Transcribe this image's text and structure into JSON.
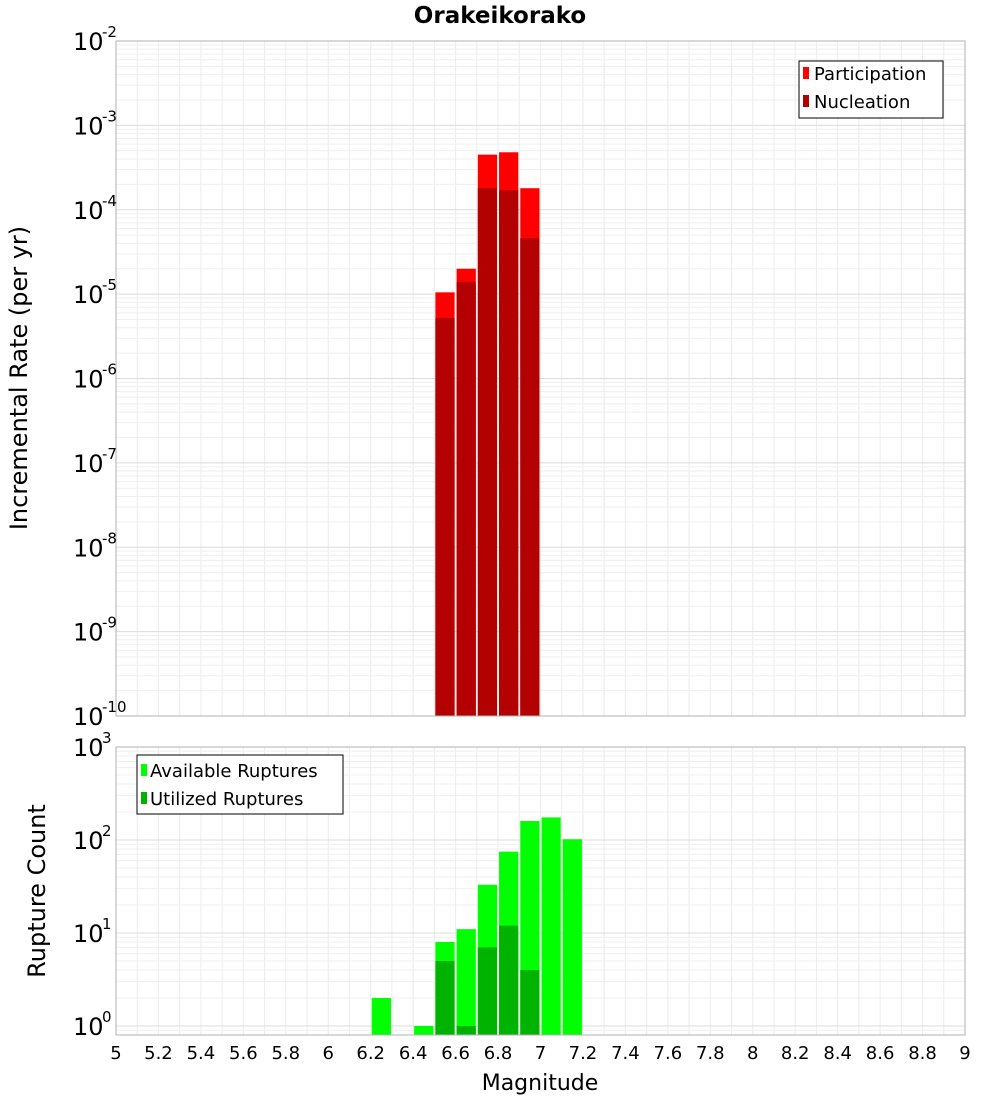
{
  "chart_data": [
    {
      "type": "bar",
      "title": "Orakeikorako",
      "xlabel": "",
      "ylabel": "Incremental Rate (per yr)",
      "yscale": "log",
      "ylim_exponents": [
        -10,
        -2
      ],
      "xlim": [
        5,
        9
      ],
      "bar_width": 0.1,
      "grid": true,
      "legend_position": "top-right",
      "series": [
        {
          "name": "Participation",
          "color": "#ff0000",
          "x": [
            6.55,
            6.65,
            6.75,
            6.85,
            6.95
          ],
          "values": [
            1.05e-05,
            2e-05,
            0.00045,
            0.00048,
            0.00018
          ]
        },
        {
          "name": "Nucleation",
          "color": "#b30000",
          "x": [
            6.55,
            6.65,
            6.75,
            6.85,
            6.95
          ],
          "values": [
            5.2e-06,
            1.4e-05,
            0.00018,
            0.00017,
            4.6e-05
          ]
        }
      ]
    },
    {
      "type": "bar",
      "title": "",
      "xlabel": "Magnitude",
      "ylabel": "Rupture Count",
      "yscale": "log",
      "ylim_exponents": [
        0,
        3
      ],
      "ylim": [
        0.8,
        1000
      ],
      "xlim": [
        5,
        9
      ],
      "bar_width": 0.1,
      "grid": true,
      "legend_position": "top-left",
      "series": [
        {
          "name": "Available Ruptures",
          "color": "#00ff00",
          "x": [
            6.25,
            6.45,
            6.55,
            6.65,
            6.75,
            6.85,
            6.95,
            7.05,
            7.15
          ],
          "values": [
            2,
            1,
            8,
            11,
            33,
            75,
            160,
            175,
            102
          ]
        },
        {
          "name": "Utilized Ruptures",
          "color": "#00b300",
          "x": [
            6.55,
            6.65,
            6.75,
            6.85,
            6.95
          ],
          "values": [
            5,
            1,
            7,
            12,
            4
          ]
        }
      ]
    }
  ],
  "x_ticks": [
    "5",
    "5.2",
    "5.4",
    "5.6",
    "5.8",
    "6",
    "6.2",
    "6.4",
    "6.6",
    "6.8",
    "7",
    "7.2",
    "7.4",
    "7.6",
    "7.8",
    "8",
    "8.2",
    "8.4",
    "8.6",
    "8.8",
    "9"
  ]
}
